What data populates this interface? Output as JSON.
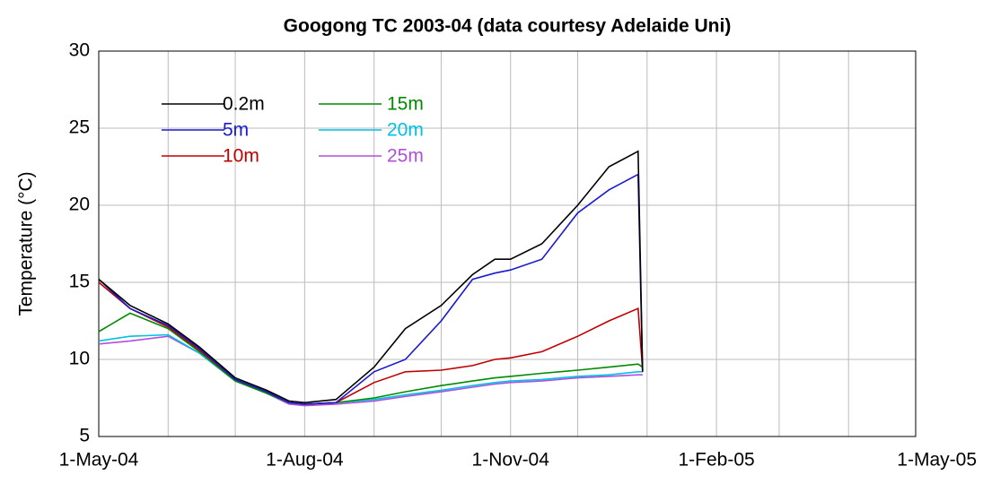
{
  "chart_data": {
    "type": "line",
    "title": "Googong TC 2003-04 (data courtesy Adelaide Uni)",
    "y_label": "Temperature (°C)",
    "x": [
      "2004-05-01",
      "2004-05-15",
      "2004-06-01",
      "2004-06-15",
      "2004-07-01",
      "2004-07-15",
      "2004-07-25",
      "2004-08-01",
      "2004-08-15",
      "2004-09-01",
      "2004-09-15",
      "2004-10-01",
      "2004-10-15",
      "2004-10-25",
      "2004-11-01",
      "2004-11-15",
      "2004-12-01",
      "2004-12-15",
      "2004-12-28",
      "2004-12-30"
    ],
    "series": [
      {
        "name": "0.2m",
        "color": "#000000",
        "values": [
          15.2,
          13.5,
          12.3,
          10.8,
          8.8,
          8.0,
          7.3,
          7.2,
          7.4,
          9.5,
          12.0,
          13.5,
          15.5,
          16.5,
          16.5,
          17.5,
          20.0,
          22.5,
          23.5,
          9.2
        ]
      },
      {
        "name": "5m",
        "color": "#1a1acc",
        "values": [
          15.2,
          13.3,
          12.2,
          10.7,
          8.7,
          7.9,
          7.2,
          7.1,
          7.2,
          9.2,
          10.0,
          12.5,
          15.2,
          15.6,
          15.8,
          16.5,
          19.5,
          21.0,
          22.0,
          9.2
        ]
      },
      {
        "name": "10m",
        "color": "#c00000",
        "values": [
          15.0,
          13.3,
          12.1,
          10.6,
          8.7,
          7.9,
          7.2,
          7.1,
          7.2,
          8.5,
          9.2,
          9.3,
          9.6,
          10.0,
          10.1,
          10.5,
          11.5,
          12.5,
          13.3,
          9.3
        ]
      },
      {
        "name": "15m",
        "color": "#008a00",
        "values": [
          11.8,
          13.0,
          12.0,
          10.5,
          8.6,
          7.8,
          7.2,
          7.1,
          7.2,
          7.5,
          7.9,
          8.3,
          8.6,
          8.8,
          8.9,
          9.1,
          9.3,
          9.5,
          9.7,
          9.5
        ]
      },
      {
        "name": "20m",
        "color": "#00c0e6",
        "values": [
          11.2,
          11.5,
          11.6,
          10.4,
          8.6,
          7.8,
          7.2,
          7.1,
          7.2,
          7.4,
          7.7,
          8.0,
          8.3,
          8.5,
          8.6,
          8.7,
          8.9,
          9.0,
          9.2,
          9.2
        ]
      },
      {
        "name": "25m",
        "color": "#b050d8",
        "values": [
          11.0,
          11.2,
          11.5,
          10.4,
          8.6,
          7.8,
          7.1,
          7.0,
          7.1,
          7.3,
          7.6,
          7.9,
          8.2,
          8.4,
          8.5,
          8.6,
          8.8,
          8.9,
          9.0,
          9.0
        ]
      }
    ],
    "xlim": [
      "2004-05-01",
      "2005-05-01"
    ],
    "xticks": [
      {
        "value": "2004-05-01",
        "label": "1-May-04"
      },
      {
        "value": "2004-08-01",
        "label": "1-Aug-04"
      },
      {
        "value": "2004-11-01",
        "label": "1-Nov-04"
      },
      {
        "value": "2005-02-01",
        "label": "1-Feb-05"
      },
      {
        "value": "2005-05-01",
        "label": "1-May-05"
      }
    ],
    "xminorticks": [
      "2004-06-01",
      "2004-07-01",
      "2004-09-01",
      "2004-10-01",
      "2004-12-01",
      "2005-01-01",
      "2005-03-01",
      "2005-04-01"
    ],
    "ylim": [
      5,
      30
    ],
    "yticks": [
      5,
      10,
      15,
      20,
      25,
      30
    ],
    "grid": true,
    "legend": "upper left"
  }
}
